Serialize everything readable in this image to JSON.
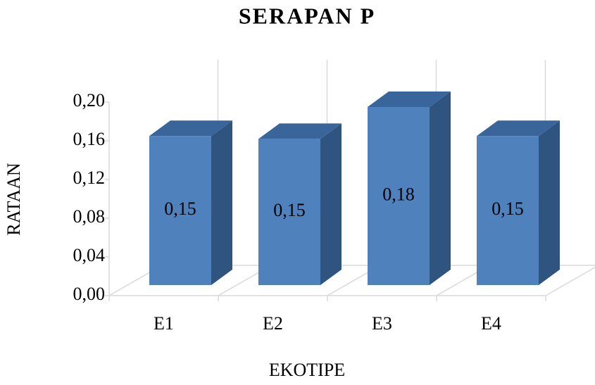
{
  "chart_data": {
    "type": "bar3d",
    "title": "SERAPAN P",
    "x_label": "EKOTIPE",
    "y_label": "RATAAN",
    "categories": [
      "E1",
      "E2",
      "E3",
      "E4"
    ],
    "values": [
      0.154,
      0.151,
      0.184,
      0.154
    ],
    "value_labels": [
      "0,15",
      "0,15",
      "0,18",
      "0,15"
    ],
    "color": "#4f81bd",
    "ylim": [
      0,
      0.2
    ],
    "yticks": [
      {
        "value": 0,
        "label": "0,00"
      },
      {
        "value": 0.04,
        "label": "0,04"
      },
      {
        "value": 0.08,
        "label": "0,08"
      },
      {
        "value": 0.12,
        "label": "0,12"
      },
      {
        "value": 0.16,
        "label": "0,16"
      },
      {
        "value": 0.2,
        "label": "0,20"
      }
    ],
    "grid": true
  }
}
